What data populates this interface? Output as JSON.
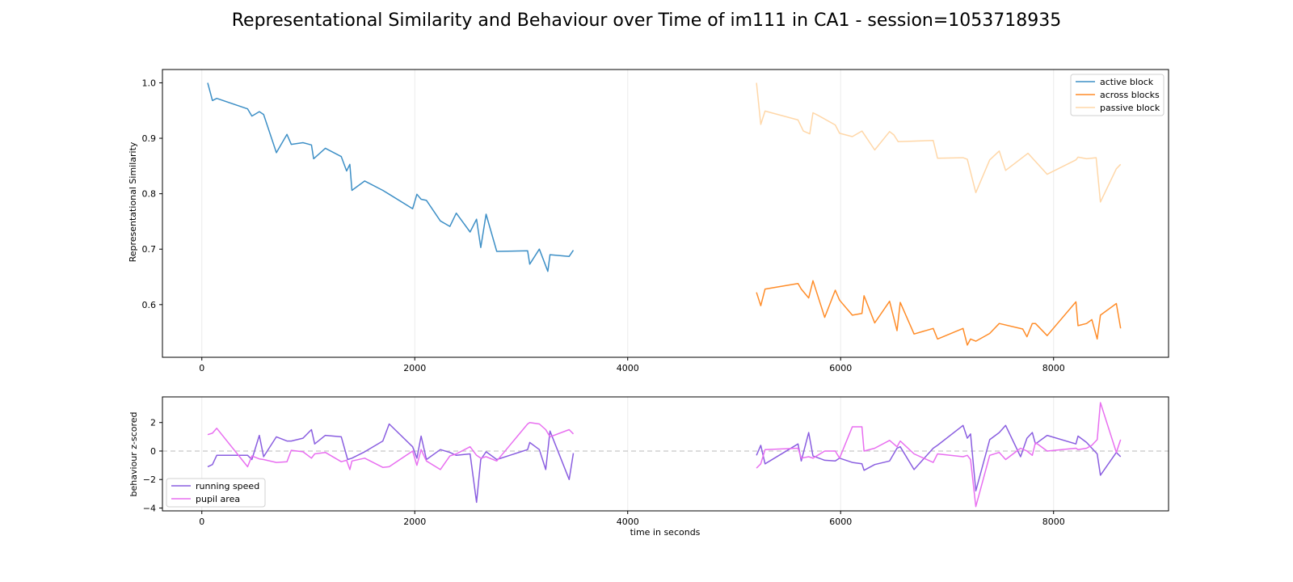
{
  "title": "Representational Similarity and Behaviour over Time of im111 in CA1 - session=1053718935",
  "chart_data": [
    {
      "type": "line",
      "ylabel": "Representational Similarity",
      "xlim": [
        -370,
        9080
      ],
      "ylim": [
        0.505,
        1.024
      ],
      "xticks": [
        0,
        2000,
        4000,
        6000,
        8000
      ],
      "yticks": [
        0.6,
        0.7,
        0.8,
        0.9,
        1.0
      ],
      "ytick_labels": [
        "0.6",
        "0.7",
        "0.8",
        "0.9",
        "1.0"
      ],
      "grid": "vertical",
      "legend_position": "upper right",
      "series": [
        {
          "name": "active block",
          "color": "#3d8fc6",
          "x": [
            55,
            100,
            140,
            430,
            470,
            540,
            580,
            700,
            800,
            840,
            950,
            1030,
            1050,
            1160,
            1310,
            1360,
            1390,
            1410,
            1530,
            1700,
            1760,
            1980,
            2020,
            2060,
            2110,
            2240,
            2330,
            2390,
            2520,
            2580,
            2620,
            2670,
            2770,
            3060,
            3080,
            3170,
            3250,
            3270,
            3450,
            3490
          ],
          "y": [
            1.0,
            0.968,
            0.972,
            0.953,
            0.94,
            0.948,
            0.943,
            0.874,
            0.907,
            0.889,
            0.892,
            0.888,
            0.863,
            0.882,
            0.867,
            0.841,
            0.853,
            0.806,
            0.823,
            0.806,
            0.799,
            0.773,
            0.799,
            0.79,
            0.788,
            0.751,
            0.741,
            0.765,
            0.731,
            0.754,
            0.703,
            0.763,
            0.696,
            0.697,
            0.673,
            0.7,
            0.66,
            0.69,
            0.687,
            0.698
          ]
        },
        {
          "name": "across blocks",
          "color": "#ff8c28",
          "x": [
            5210,
            5250,
            5290,
            5600,
            5630,
            5700,
            5740,
            5850,
            5950,
            5990,
            6110,
            6200,
            6220,
            6320,
            6460,
            6530,
            6560,
            6690,
            6870,
            6910,
            7150,
            7190,
            7220,
            7270,
            7400,
            7490,
            7710,
            7750,
            7800,
            7830,
            7940,
            8210,
            8230,
            8310,
            8360,
            8410,
            8440,
            8590,
            8630
          ],
          "y": [
            0.622,
            0.598,
            0.628,
            0.638,
            0.628,
            0.612,
            0.643,
            0.577,
            0.626,
            0.608,
            0.581,
            0.584,
            0.616,
            0.567,
            0.606,
            0.553,
            0.604,
            0.547,
            0.557,
            0.538,
            0.557,
            0.527,
            0.538,
            0.534,
            0.548,
            0.566,
            0.556,
            0.542,
            0.566,
            0.566,
            0.544,
            0.605,
            0.562,
            0.566,
            0.573,
            0.538,
            0.581,
            0.602,
            0.557
          ]
        },
        {
          "name": "passive block",
          "color": "#ffd7a8",
          "x": [
            5210,
            5250,
            5290,
            5600,
            5650,
            5710,
            5740,
            5800,
            5950,
            5990,
            6110,
            6200,
            6320,
            6460,
            6500,
            6540,
            6870,
            6910,
            7150,
            7190,
            7270,
            7400,
            7490,
            7550,
            7760,
            7940,
            8210,
            8230,
            8310,
            8400,
            8440,
            8590,
            8630
          ],
          "y": [
            1.0,
            0.925,
            0.949,
            0.933,
            0.913,
            0.908,
            0.946,
            0.94,
            0.924,
            0.909,
            0.903,
            0.913,
            0.879,
            0.912,
            0.906,
            0.894,
            0.896,
            0.864,
            0.865,
            0.862,
            0.802,
            0.861,
            0.877,
            0.842,
            0.873,
            0.835,
            0.861,
            0.866,
            0.863,
            0.865,
            0.785,
            0.845,
            0.853
          ]
        }
      ]
    },
    {
      "type": "line",
      "xlabel": "time in seconds",
      "ylabel": "behaviour z-scored",
      "xlim": [
        -370,
        9080
      ],
      "ylim": [
        -4.2,
        3.8
      ],
      "xticks": [
        0,
        2000,
        4000,
        6000,
        8000
      ],
      "yticks": [
        -4,
        -2,
        0,
        2
      ],
      "ytick_labels": [
        "−4",
        "−2",
        "0",
        "2"
      ],
      "reference_line": 0,
      "grid": "vertical",
      "legend_position": "lower left",
      "series": [
        {
          "name": "running speed",
          "color": "#8a5ee0",
          "x": [
            55,
            100,
            140,
            430,
            470,
            540,
            580,
            700,
            800,
            840,
            950,
            1030,
            1060,
            1160,
            1310,
            1370,
            1410,
            1530,
            1700,
            1760,
            1980,
            2020,
            2060,
            2110,
            2240,
            2330,
            2390,
            2520,
            2580,
            2620,
            2670,
            2770,
            3060,
            3080,
            3170,
            3230,
            3270,
            3450,
            3490
          ],
          "y": [
            -1.1,
            -0.95,
            -0.3,
            -0.3,
            -0.6,
            1.1,
            -0.4,
            1.0,
            0.7,
            0.7,
            0.9,
            1.5,
            0.5,
            1.1,
            1.0,
            -0.6,
            -0.5,
            -0.05,
            0.7,
            1.9,
            0.3,
            -0.5,
            1.05,
            -0.6,
            0.1,
            -0.1,
            -0.3,
            -0.2,
            -3.6,
            -0.6,
            -0.05,
            -0.6,
            0.1,
            0.6,
            0.1,
            -1.3,
            1.4,
            -2.0,
            -0.15
          ]
        },
        {
          "name": "pupil area",
          "color": "#e86ff0",
          "x": [
            55,
            100,
            140,
            430,
            470,
            540,
            580,
            700,
            800,
            840,
            950,
            1030,
            1060,
            1160,
            1310,
            1360,
            1390,
            1410,
            1530,
            1700,
            1760,
            1980,
            2020,
            2060,
            2110,
            2240,
            2330,
            2390,
            2520,
            2580,
            2620,
            2670,
            2770,
            3060,
            3080,
            3170,
            3230,
            3270,
            3450,
            3490
          ],
          "y": [
            1.15,
            1.25,
            1.6,
            -1.1,
            -0.35,
            -0.55,
            -0.6,
            -0.8,
            -0.75,
            0.05,
            -0.05,
            -0.5,
            -0.2,
            -0.1,
            -0.75,
            -0.65,
            -1.3,
            -0.7,
            -0.5,
            -1.15,
            -1.1,
            0.0,
            -1.0,
            0.1,
            -0.7,
            -1.3,
            -0.35,
            -0.2,
            0.3,
            -0.3,
            -0.5,
            -0.4,
            -0.7,
            1.9,
            2.0,
            1.9,
            1.5,
            1.0,
            1.5,
            1.2
          ]
        },
        {
          "name": "running speed",
          "color": "#8a5ee0",
          "x": [
            5210,
            5250,
            5290,
            5600,
            5630,
            5700,
            5740,
            5850,
            5950,
            5990,
            6110,
            6200,
            6220,
            6320,
            6460,
            6530,
            6560,
            6690,
            6870,
            6910,
            7150,
            7190,
            7220,
            7270,
            7400,
            7490,
            7550,
            7690,
            7750,
            7800,
            7830,
            7940,
            8210,
            8230,
            8310,
            8360,
            8410,
            8440,
            8590,
            8630
          ],
          "y": [
            -0.3,
            0.4,
            -0.9,
            0.5,
            -0.7,
            1.3,
            -0.35,
            -0.65,
            -0.7,
            -0.5,
            -0.8,
            -0.9,
            -1.35,
            -0.95,
            -0.7,
            0.2,
            0.3,
            -1.3,
            0.2,
            0.4,
            1.8,
            0.9,
            1.2,
            -2.8,
            0.8,
            1.3,
            1.8,
            -0.4,
            0.9,
            1.3,
            0.5,
            1.1,
            0.5,
            1.05,
            0.6,
            0.2,
            -0.2,
            -1.7,
            -0.1,
            -0.4
          ]
        },
        {
          "name": "pupil area",
          "color": "#e86ff0",
          "x": [
            5210,
            5250,
            5290,
            5600,
            5630,
            5700,
            5740,
            5850,
            5950,
            5990,
            6110,
            6200,
            6220,
            6320,
            6460,
            6530,
            6560,
            6690,
            6870,
            6910,
            7150,
            7190,
            7220,
            7270,
            7400,
            7490,
            7550,
            7690,
            7750,
            7800,
            7830,
            7940,
            8210,
            8230,
            8310,
            8360,
            8410,
            8440,
            8590,
            8630
          ],
          "y": [
            -1.2,
            -0.9,
            0.1,
            0.2,
            -0.5,
            -0.4,
            -0.5,
            0.0,
            0.0,
            -0.5,
            1.7,
            1.7,
            0.0,
            0.2,
            0.75,
            0.3,
            0.7,
            -0.2,
            -0.8,
            -0.2,
            -0.4,
            -0.3,
            -0.6,
            -3.9,
            -0.3,
            -0.1,
            -0.6,
            0.2,
            0.0,
            -0.3,
            0.6,
            0.0,
            0.2,
            0.1,
            0.2,
            0.4,
            0.8,
            3.4,
            -0.1,
            0.8
          ]
        }
      ]
    }
  ]
}
